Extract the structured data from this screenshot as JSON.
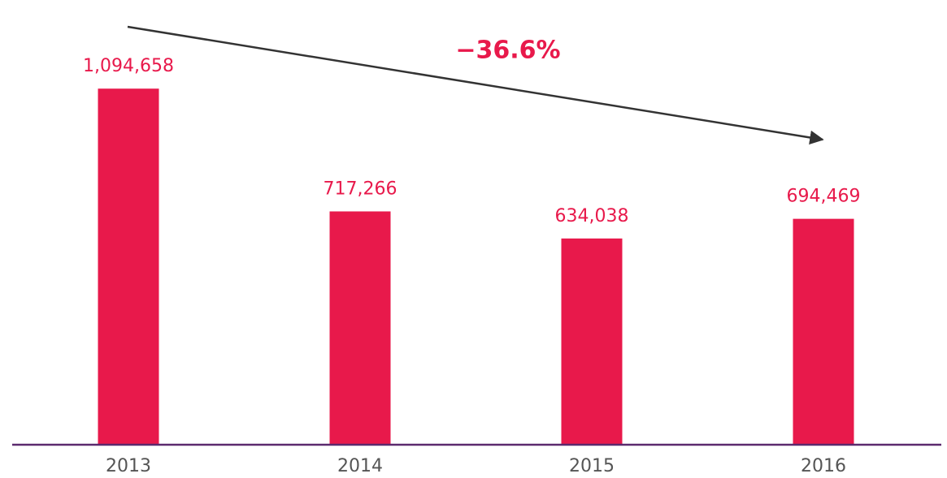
{
  "chart_data": {
    "type": "bar",
    "annotation": "−36.6%",
    "categories": [
      "2013",
      "2014",
      "2015",
      "2016"
    ],
    "values": [
      1094658,
      717266,
      634038,
      694469
    ],
    "value_labels": [
      "1,094,658",
      "717,266",
      "634,038",
      "694,469"
    ],
    "color": "#e8194b",
    "ylim": [
      0,
      1200000
    ]
  }
}
